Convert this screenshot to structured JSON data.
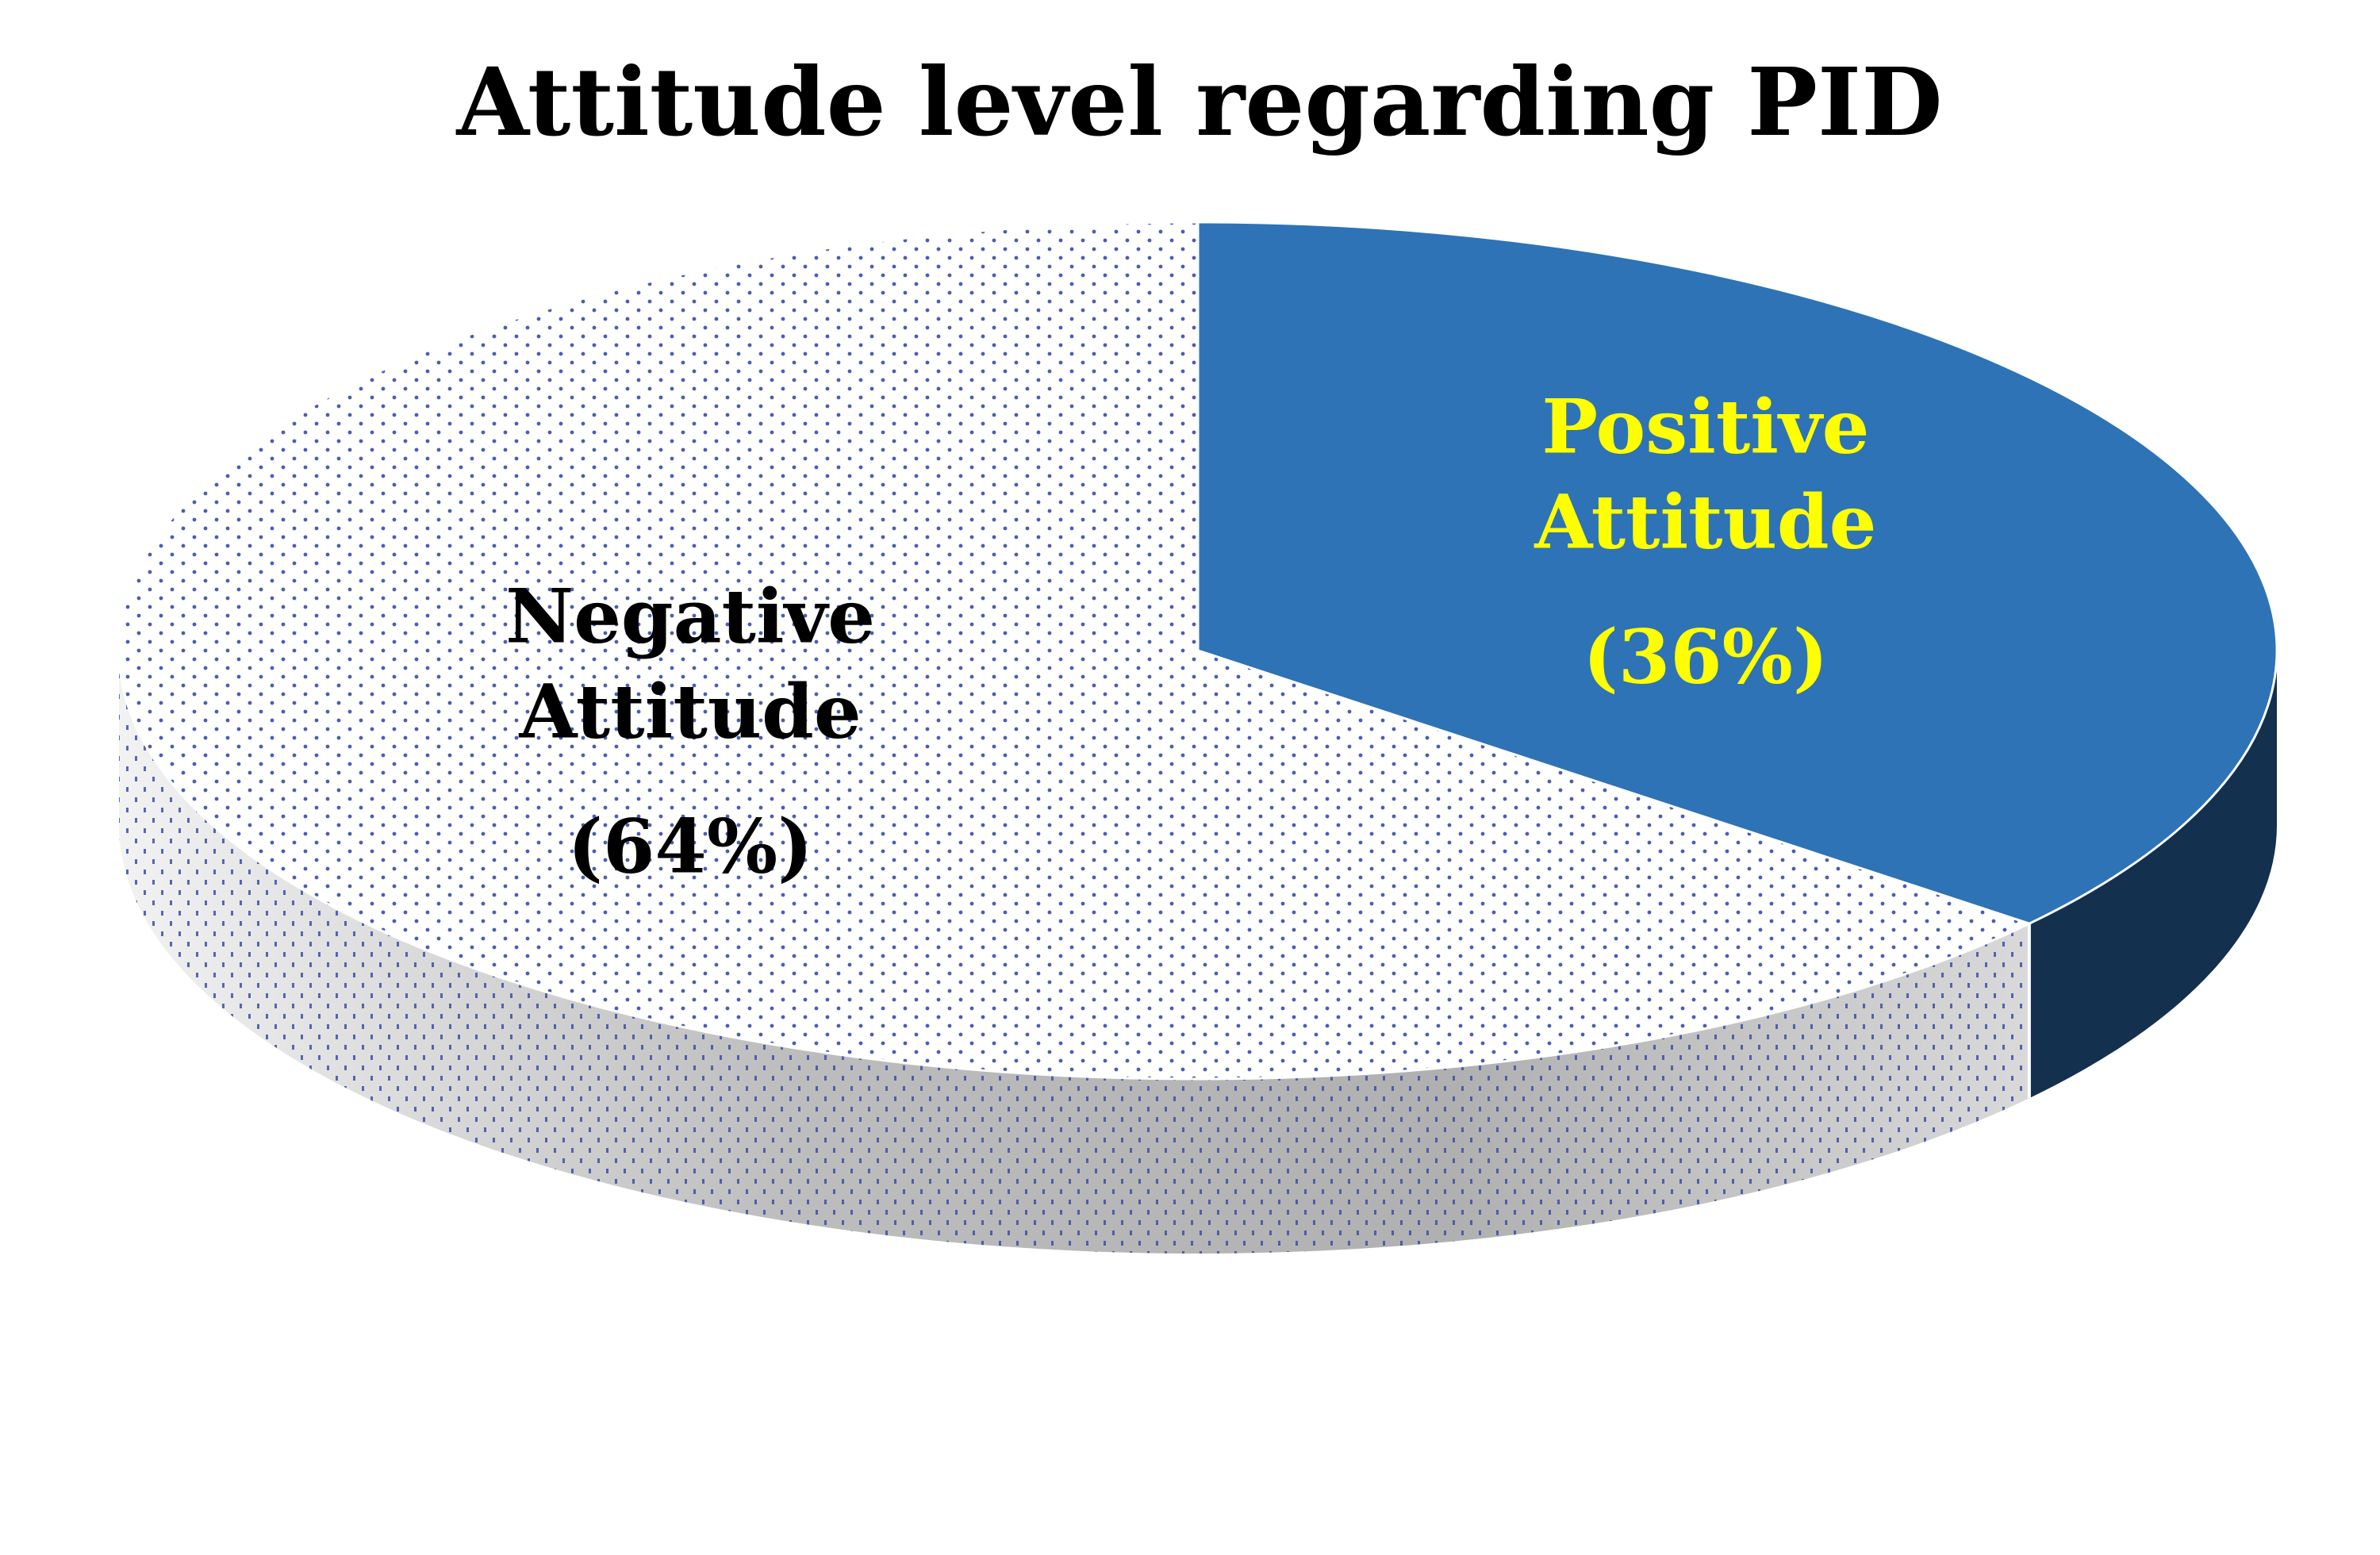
{
  "chart_data": {
    "type": "pie",
    "title": "Attitude level regarding PID",
    "slices": [
      {
        "label_line1": "Positive",
        "label_line2": "Attitude",
        "value_label": "(36%)",
        "value": 36,
        "color": "#2E73B6",
        "side_color": "#14304F",
        "label_color": "#FFFF00"
      },
      {
        "label_line1": "Negative",
        "label_line2": "Attitude",
        "value_label": "(64%)",
        "value": 64,
        "color": "#FFFFFF",
        "side_color": "#A6A6A6",
        "dot_color": "#3B4FA8",
        "label_color": "#000000"
      }
    ]
  }
}
